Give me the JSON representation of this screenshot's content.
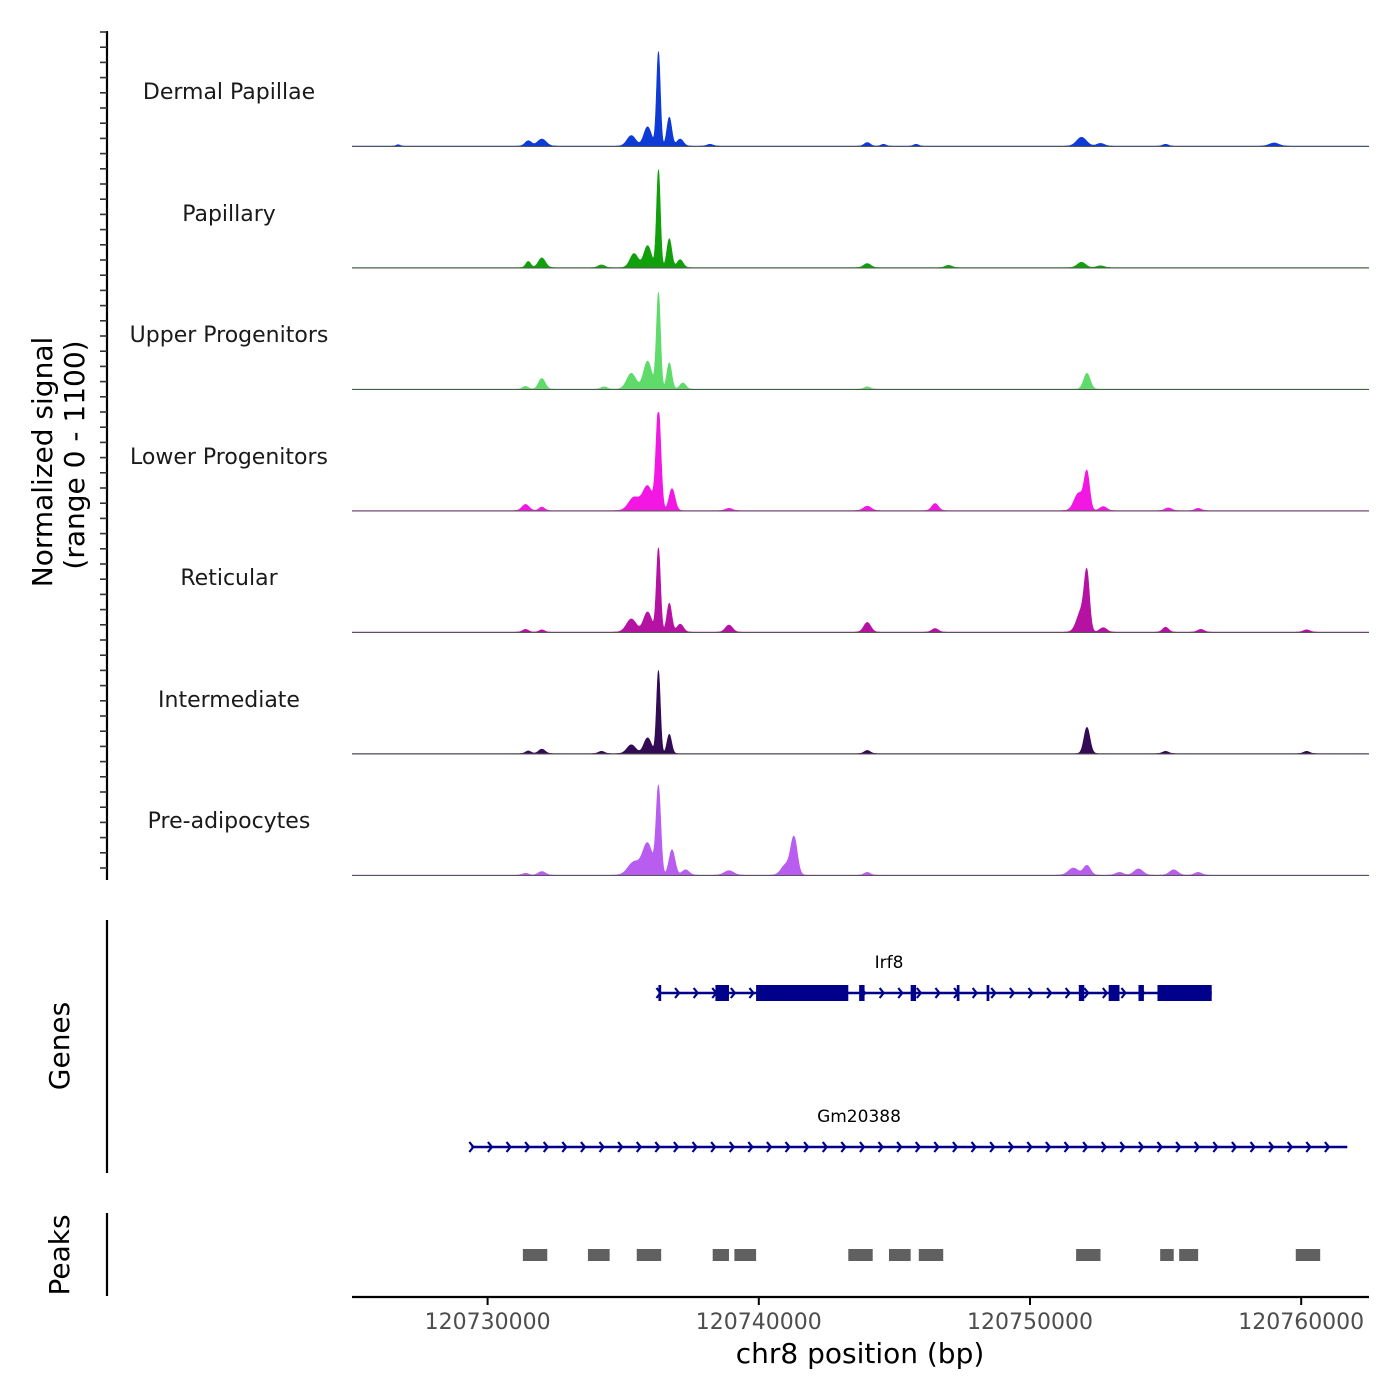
{
  "chart_data": {
    "type": "area",
    "chromosome": "chr8",
    "xlabel": "chr8 position (bp)",
    "xlim": [
      120725000,
      120762500
    ],
    "xticks": [
      120730000,
      120740000,
      120750000,
      120760000
    ],
    "xtick_labels": [
      "120730000",
      "120740000",
      "120750000",
      "120760000"
    ],
    "coverage": {
      "ylabel_line1": "Normalized signal",
      "ylabel_line2": "(range 0 - 1100)",
      "ylim": [
        0,
        1100
      ],
      "tracks": [
        {
          "name": "Dermal Papillae",
          "color": "#0e3bd6",
          "peaks": [
            {
              "pos": 120726700,
              "height": 15,
              "width": 70
            },
            {
              "pos": 120731500,
              "height": 60,
              "width": 120
            },
            {
              "pos": 120732000,
              "height": 80,
              "width": 160
            },
            {
              "pos": 120735300,
              "height": 120,
              "width": 160
            },
            {
              "pos": 120735900,
              "height": 220,
              "width": 140
            },
            {
              "pos": 120736300,
              "height": 1080,
              "width": 70
            },
            {
              "pos": 120736700,
              "height": 330,
              "width": 90
            },
            {
              "pos": 120737100,
              "height": 80,
              "width": 120
            },
            {
              "pos": 120738200,
              "height": 20,
              "width": 110
            },
            {
              "pos": 120744000,
              "height": 40,
              "width": 110
            },
            {
              "pos": 120744600,
              "height": 20,
              "width": 90
            },
            {
              "pos": 120745800,
              "height": 20,
              "width": 90
            },
            {
              "pos": 120751900,
              "height": 100,
              "width": 180
            },
            {
              "pos": 120752600,
              "height": 30,
              "width": 140
            },
            {
              "pos": 120755000,
              "height": 20,
              "width": 100
            },
            {
              "pos": 120759000,
              "height": 35,
              "width": 170
            }
          ]
        },
        {
          "name": "Papillary",
          "color": "#11a00c",
          "peaks": [
            {
              "pos": 120731500,
              "height": 70,
              "width": 90
            },
            {
              "pos": 120732000,
              "height": 110,
              "width": 130
            },
            {
              "pos": 120734200,
              "height": 30,
              "width": 120
            },
            {
              "pos": 120735400,
              "height": 160,
              "width": 150
            },
            {
              "pos": 120735900,
              "height": 250,
              "width": 140
            },
            {
              "pos": 120736300,
              "height": 1120,
              "width": 70
            },
            {
              "pos": 120736700,
              "height": 330,
              "width": 90
            },
            {
              "pos": 120737100,
              "height": 90,
              "width": 110
            },
            {
              "pos": 120744000,
              "height": 45,
              "width": 130
            },
            {
              "pos": 120747000,
              "height": 25,
              "width": 120
            },
            {
              "pos": 120751900,
              "height": 60,
              "width": 150
            },
            {
              "pos": 120752600,
              "height": 20,
              "width": 130
            }
          ]
        },
        {
          "name": "Upper Progenitors",
          "color": "#5fdb6a",
          "peaks": [
            {
              "pos": 120731400,
              "height": 30,
              "width": 100
            },
            {
              "pos": 120732000,
              "height": 120,
              "width": 120
            },
            {
              "pos": 120734300,
              "height": 25,
              "width": 110
            },
            {
              "pos": 120735300,
              "height": 180,
              "width": 170
            },
            {
              "pos": 120735900,
              "height": 320,
              "width": 150
            },
            {
              "pos": 120736300,
              "height": 1100,
              "width": 75
            },
            {
              "pos": 120736700,
              "height": 300,
              "width": 90
            },
            {
              "pos": 120737200,
              "height": 70,
              "width": 110
            },
            {
              "pos": 120744000,
              "height": 25,
              "width": 110
            },
            {
              "pos": 120752100,
              "height": 180,
              "width": 120
            }
          ]
        },
        {
          "name": "Lower Progenitors",
          "color": "#f217e3",
          "peaks": [
            {
              "pos": 120731400,
              "height": 70,
              "width": 130
            },
            {
              "pos": 120732000,
              "height": 40,
              "width": 100
            },
            {
              "pos": 120735400,
              "height": 150,
              "width": 200
            },
            {
              "pos": 120735900,
              "height": 280,
              "width": 180
            },
            {
              "pos": 120736300,
              "height": 1150,
              "width": 90
            },
            {
              "pos": 120736800,
              "height": 250,
              "width": 110
            },
            {
              "pos": 120738900,
              "height": 25,
              "width": 120
            },
            {
              "pos": 120744000,
              "height": 50,
              "width": 140
            },
            {
              "pos": 120746500,
              "height": 80,
              "width": 120
            },
            {
              "pos": 120751800,
              "height": 200,
              "width": 170
            },
            {
              "pos": 120752100,
              "height": 420,
              "width": 100
            },
            {
              "pos": 120752700,
              "height": 45,
              "width": 130
            },
            {
              "pos": 120755100,
              "height": 30,
              "width": 120
            },
            {
              "pos": 120756200,
              "height": 25,
              "width": 110
            }
          ]
        },
        {
          "name": "Reticular",
          "color": "#b512a4",
          "peaks": [
            {
              "pos": 120731400,
              "height": 30,
              "width": 110
            },
            {
              "pos": 120732000,
              "height": 25,
              "width": 100
            },
            {
              "pos": 120735300,
              "height": 150,
              "width": 180
            },
            {
              "pos": 120735900,
              "height": 230,
              "width": 150
            },
            {
              "pos": 120736300,
              "height": 960,
              "width": 75
            },
            {
              "pos": 120736700,
              "height": 330,
              "width": 90
            },
            {
              "pos": 120737100,
              "height": 90,
              "width": 120
            },
            {
              "pos": 120738900,
              "height": 80,
              "width": 130
            },
            {
              "pos": 120744000,
              "height": 110,
              "width": 130
            },
            {
              "pos": 120746500,
              "height": 40,
              "width": 120
            },
            {
              "pos": 120751900,
              "height": 250,
              "width": 170
            },
            {
              "pos": 120752100,
              "height": 600,
              "width": 95
            },
            {
              "pos": 120752700,
              "height": 50,
              "width": 130
            },
            {
              "pos": 120755000,
              "height": 55,
              "width": 110
            },
            {
              "pos": 120756300,
              "height": 30,
              "width": 120
            },
            {
              "pos": 120760200,
              "height": 25,
              "width": 120
            }
          ]
        },
        {
          "name": "Intermediate",
          "color": "#330a54",
          "peaks": [
            {
              "pos": 120731500,
              "height": 30,
              "width": 100
            },
            {
              "pos": 120732000,
              "height": 50,
              "width": 120
            },
            {
              "pos": 120734200,
              "height": 25,
              "width": 110
            },
            {
              "pos": 120735300,
              "height": 100,
              "width": 160
            },
            {
              "pos": 120735900,
              "height": 180,
              "width": 140
            },
            {
              "pos": 120736300,
              "height": 950,
              "width": 70
            },
            {
              "pos": 120736700,
              "height": 220,
              "width": 85
            },
            {
              "pos": 120744000,
              "height": 35,
              "width": 110
            },
            {
              "pos": 120752100,
              "height": 300,
              "width": 110
            },
            {
              "pos": 120755000,
              "height": 25,
              "width": 110
            },
            {
              "pos": 120760200,
              "height": 25,
              "width": 110
            }
          ]
        },
        {
          "name": "Pre-adipocytes",
          "color": "#b95cf0",
          "peaks": [
            {
              "pos": 120731400,
              "height": 20,
              "width": 110
            },
            {
              "pos": 120732000,
              "height": 40,
              "width": 130
            },
            {
              "pos": 120735400,
              "height": 150,
              "width": 220
            },
            {
              "pos": 120735900,
              "height": 360,
              "width": 180
            },
            {
              "pos": 120736300,
              "height": 1000,
              "width": 85
            },
            {
              "pos": 120736800,
              "height": 290,
              "width": 110
            },
            {
              "pos": 120737300,
              "height": 60,
              "width": 130
            },
            {
              "pos": 120738900,
              "height": 50,
              "width": 170
            },
            {
              "pos": 120741000,
              "height": 120,
              "width": 170
            },
            {
              "pos": 120741300,
              "height": 420,
              "width": 120
            },
            {
              "pos": 120744000,
              "height": 30,
              "width": 110
            },
            {
              "pos": 120751600,
              "height": 80,
              "width": 180
            },
            {
              "pos": 120752100,
              "height": 110,
              "width": 130
            },
            {
              "pos": 120753300,
              "height": 30,
              "width": 140
            },
            {
              "pos": 120754000,
              "height": 70,
              "width": 160
            },
            {
              "pos": 120755300,
              "height": 60,
              "width": 150
            },
            {
              "pos": 120756200,
              "height": 30,
              "width": 130
            }
          ]
        }
      ]
    },
    "genes": {
      "ylabel": "Genes",
      "color": "#00008b",
      "items": [
        {
          "name": "Irf8",
          "strand": "+",
          "start": 120736300,
          "end": 120756700,
          "exons": [
            [
              120736300,
              120736400
            ],
            [
              120738400,
              120738900
            ],
            [
              120739900,
              120743300
            ],
            [
              120743700,
              120743900
            ],
            [
              120745600,
              120745800
            ],
            [
              120747300,
              120747400
            ],
            [
              120748400,
              120748500
            ],
            [
              120751800,
              120752000
            ],
            [
              120752900,
              120753300
            ],
            [
              120754000,
              120754200
            ],
            [
              120754700,
              120756700
            ]
          ]
        },
        {
          "name": "Gm20388",
          "strand": "+",
          "start": 120729400,
          "end": 120761700,
          "exons": []
        }
      ]
    },
    "peaks": {
      "ylabel": "Peaks",
      "color": "#606060",
      "items": [
        [
          120731300,
          120732200
        ],
        [
          120733700,
          120734500
        ],
        [
          120735500,
          120736400
        ],
        [
          120738300,
          120738900
        ],
        [
          120739100,
          120739900
        ],
        [
          120743300,
          120744200
        ],
        [
          120744800,
          120745600
        ],
        [
          120745900,
          120746800
        ],
        [
          120751700,
          120752600
        ],
        [
          120754800,
          120755300
        ],
        [
          120755500,
          120756200
        ],
        [
          120759800,
          120760700
        ]
      ]
    }
  }
}
